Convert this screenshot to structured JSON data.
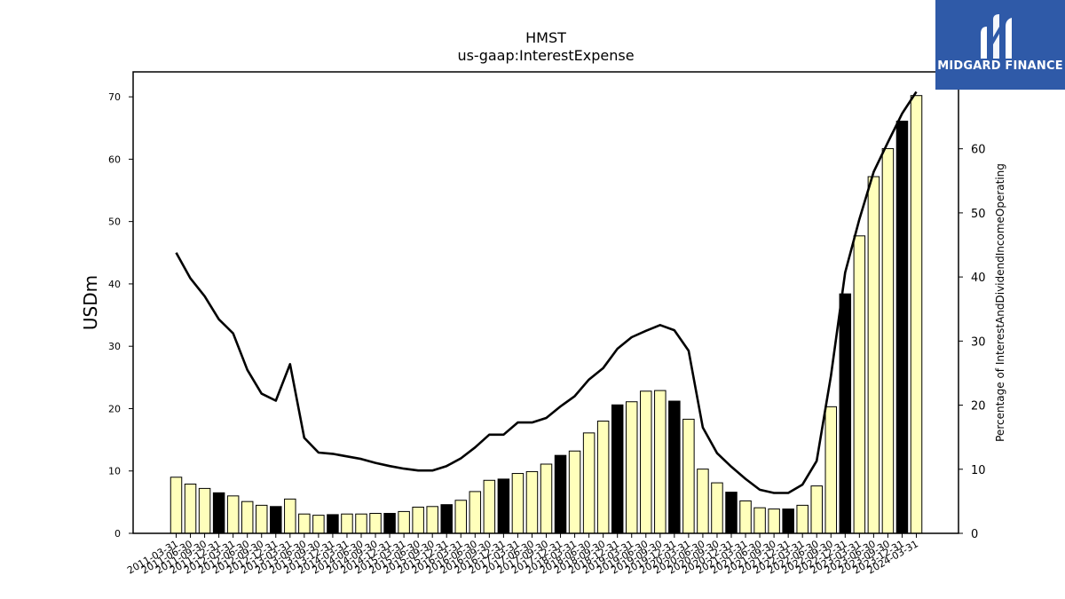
{
  "header": {
    "ticker": "HMST",
    "metric": "us-gaap:InterestExpense"
  },
  "brand": {
    "name": "MIDGARD FINANCE",
    "color": "#2f5aa8"
  },
  "chart_data": {
    "type": "bar",
    "title": "HMST",
    "subtitle": "us-gaap:InterestExpense",
    "ylabel": "USDm",
    "y2label": "Percentage of InterestAndDividendIncomeOperating",
    "ylim": [
      0,
      74
    ],
    "y2lim": [
      0,
      72
    ],
    "yticks": [
      0,
      10,
      20,
      30,
      40,
      50,
      60,
      70
    ],
    "y2ticks": [
      0,
      10,
      20,
      30,
      40,
      50,
      60
    ],
    "bar_colors": {
      "regular": "#ffffbb",
      "year_end": "#000000"
    },
    "categories": [
      "2011-03-31",
      "2011-06-30",
      "2011-09-30",
      "2011-12-31",
      "2012-03-31",
      "2012-06-30",
      "2012-09-30",
      "2012-12-31",
      "2013-03-31",
      "2013-06-30",
      "2013-09-30",
      "2013-12-31",
      "2014-03-31",
      "2014-06-30",
      "2014-09-30",
      "2014-12-31",
      "2015-03-31",
      "2015-06-30",
      "2015-09-30",
      "2015-12-31",
      "2016-03-31",
      "2016-06-30",
      "2016-09-30",
      "2016-12-31",
      "2017-03-31",
      "2017-06-30",
      "2017-09-30",
      "2017-12-31",
      "2018-03-31",
      "2018-06-30",
      "2018-09-30",
      "2018-12-31",
      "2019-03-31",
      "2019-06-30",
      "2019-09-30",
      "2019-12-31",
      "2020-03-31",
      "2020-06-30",
      "2020-09-30",
      "2020-12-31",
      "2021-03-31",
      "2021-06-30",
      "2021-09-30",
      "2021-12-31",
      "2022-03-31",
      "2022-06-30",
      "2022-09-30",
      "2022-12-31",
      "2023-03-31",
      "2023-06-30",
      "2023-09-30",
      "2023-12-31",
      "2024-03-31"
    ],
    "series": [
      {
        "type": "bar",
        "axis": "left",
        "values": [
          9.0,
          7.9,
          7.2,
          6.5,
          6.0,
          5.1,
          4.5,
          4.3,
          5.5,
          3.1,
          2.9,
          3.0,
          3.1,
          3.1,
          3.2,
          3.2,
          3.5,
          4.2,
          4.3,
          4.6,
          5.3,
          6.7,
          8.5,
          8.7,
          9.6,
          9.9,
          11.1,
          12.5,
          13.2,
          16.1,
          18.0,
          20.6,
          21.1,
          22.8,
          22.9,
          21.2,
          18.3,
          10.3,
          8.1,
          6.6,
          5.2,
          4.1,
          3.9,
          3.9,
          4.5,
          7.6,
          20.3,
          38.4,
          47.7,
          57.2,
          61.7,
          66.1,
          70.2
        ]
      },
      {
        "type": "line",
        "axis": "right",
        "values": [
          43.8,
          39.8,
          37.0,
          33.4,
          31.2,
          25.5,
          21.8,
          20.7,
          26.4,
          14.9,
          12.6,
          12.4,
          12.0,
          11.6,
          11.0,
          10.5,
          10.1,
          9.8,
          9.8,
          10.5,
          11.7,
          13.4,
          15.4,
          15.4,
          17.3,
          17.3,
          18.0,
          19.8,
          21.4,
          24.0,
          25.8,
          28.8,
          30.6,
          31.6,
          32.5,
          31.7,
          28.5,
          16.5,
          12.5,
          10.4,
          8.5,
          6.8,
          6.3,
          6.3,
          7.6,
          11.3,
          24.6,
          40.7,
          49.0,
          56.4,
          61.0,
          65.5,
          68.9
        ]
      }
    ],
    "grid": false,
    "legend": "none"
  }
}
